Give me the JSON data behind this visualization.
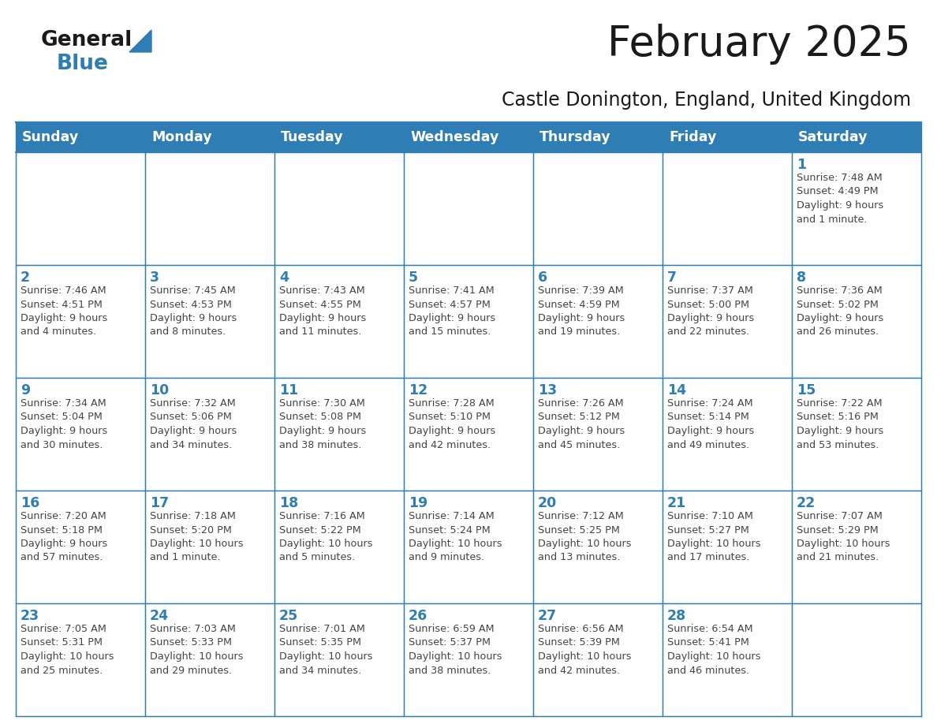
{
  "title": "February 2025",
  "subtitle": "Castle Donington, England, United Kingdom",
  "days_of_week": [
    "Sunday",
    "Monday",
    "Tuesday",
    "Wednesday",
    "Thursday",
    "Friday",
    "Saturday"
  ],
  "header_bg": "#2e7db5",
  "header_text": "#ffffff",
  "border_color": "#2e7db5",
  "text_color": "#444444",
  "day_number_color": "#2e7db5",
  "logo_general_color": "#1a1a1a",
  "logo_blue_color": "#2e7db5",
  "weeks": [
    [
      {
        "day": 0,
        "text": ""
      },
      {
        "day": 0,
        "text": ""
      },
      {
        "day": 0,
        "text": ""
      },
      {
        "day": 0,
        "text": ""
      },
      {
        "day": 0,
        "text": ""
      },
      {
        "day": 0,
        "text": ""
      },
      {
        "day": 1,
        "text": "Sunrise: 7:48 AM\nSunset: 4:49 PM\nDaylight: 9 hours\nand 1 minute."
      }
    ],
    [
      {
        "day": 2,
        "text": "Sunrise: 7:46 AM\nSunset: 4:51 PM\nDaylight: 9 hours\nand 4 minutes."
      },
      {
        "day": 3,
        "text": "Sunrise: 7:45 AM\nSunset: 4:53 PM\nDaylight: 9 hours\nand 8 minutes."
      },
      {
        "day": 4,
        "text": "Sunrise: 7:43 AM\nSunset: 4:55 PM\nDaylight: 9 hours\nand 11 minutes."
      },
      {
        "day": 5,
        "text": "Sunrise: 7:41 AM\nSunset: 4:57 PM\nDaylight: 9 hours\nand 15 minutes."
      },
      {
        "day": 6,
        "text": "Sunrise: 7:39 AM\nSunset: 4:59 PM\nDaylight: 9 hours\nand 19 minutes."
      },
      {
        "day": 7,
        "text": "Sunrise: 7:37 AM\nSunset: 5:00 PM\nDaylight: 9 hours\nand 22 minutes."
      },
      {
        "day": 8,
        "text": "Sunrise: 7:36 AM\nSunset: 5:02 PM\nDaylight: 9 hours\nand 26 minutes."
      }
    ],
    [
      {
        "day": 9,
        "text": "Sunrise: 7:34 AM\nSunset: 5:04 PM\nDaylight: 9 hours\nand 30 minutes."
      },
      {
        "day": 10,
        "text": "Sunrise: 7:32 AM\nSunset: 5:06 PM\nDaylight: 9 hours\nand 34 minutes."
      },
      {
        "day": 11,
        "text": "Sunrise: 7:30 AM\nSunset: 5:08 PM\nDaylight: 9 hours\nand 38 minutes."
      },
      {
        "day": 12,
        "text": "Sunrise: 7:28 AM\nSunset: 5:10 PM\nDaylight: 9 hours\nand 42 minutes."
      },
      {
        "day": 13,
        "text": "Sunrise: 7:26 AM\nSunset: 5:12 PM\nDaylight: 9 hours\nand 45 minutes."
      },
      {
        "day": 14,
        "text": "Sunrise: 7:24 AM\nSunset: 5:14 PM\nDaylight: 9 hours\nand 49 minutes."
      },
      {
        "day": 15,
        "text": "Sunrise: 7:22 AM\nSunset: 5:16 PM\nDaylight: 9 hours\nand 53 minutes."
      }
    ],
    [
      {
        "day": 16,
        "text": "Sunrise: 7:20 AM\nSunset: 5:18 PM\nDaylight: 9 hours\nand 57 minutes."
      },
      {
        "day": 17,
        "text": "Sunrise: 7:18 AM\nSunset: 5:20 PM\nDaylight: 10 hours\nand 1 minute."
      },
      {
        "day": 18,
        "text": "Sunrise: 7:16 AM\nSunset: 5:22 PM\nDaylight: 10 hours\nand 5 minutes."
      },
      {
        "day": 19,
        "text": "Sunrise: 7:14 AM\nSunset: 5:24 PM\nDaylight: 10 hours\nand 9 minutes."
      },
      {
        "day": 20,
        "text": "Sunrise: 7:12 AM\nSunset: 5:25 PM\nDaylight: 10 hours\nand 13 minutes."
      },
      {
        "day": 21,
        "text": "Sunrise: 7:10 AM\nSunset: 5:27 PM\nDaylight: 10 hours\nand 17 minutes."
      },
      {
        "day": 22,
        "text": "Sunrise: 7:07 AM\nSunset: 5:29 PM\nDaylight: 10 hours\nand 21 minutes."
      }
    ],
    [
      {
        "day": 23,
        "text": "Sunrise: 7:05 AM\nSunset: 5:31 PM\nDaylight: 10 hours\nand 25 minutes."
      },
      {
        "day": 24,
        "text": "Sunrise: 7:03 AM\nSunset: 5:33 PM\nDaylight: 10 hours\nand 29 minutes."
      },
      {
        "day": 25,
        "text": "Sunrise: 7:01 AM\nSunset: 5:35 PM\nDaylight: 10 hours\nand 34 minutes."
      },
      {
        "day": 26,
        "text": "Sunrise: 6:59 AM\nSunset: 5:37 PM\nDaylight: 10 hours\nand 38 minutes."
      },
      {
        "day": 27,
        "text": "Sunrise: 6:56 AM\nSunset: 5:39 PM\nDaylight: 10 hours\nand 42 minutes."
      },
      {
        "day": 28,
        "text": "Sunrise: 6:54 AM\nSunset: 5:41 PM\nDaylight: 10 hours\nand 46 minutes."
      },
      {
        "day": 0,
        "text": ""
      }
    ]
  ]
}
